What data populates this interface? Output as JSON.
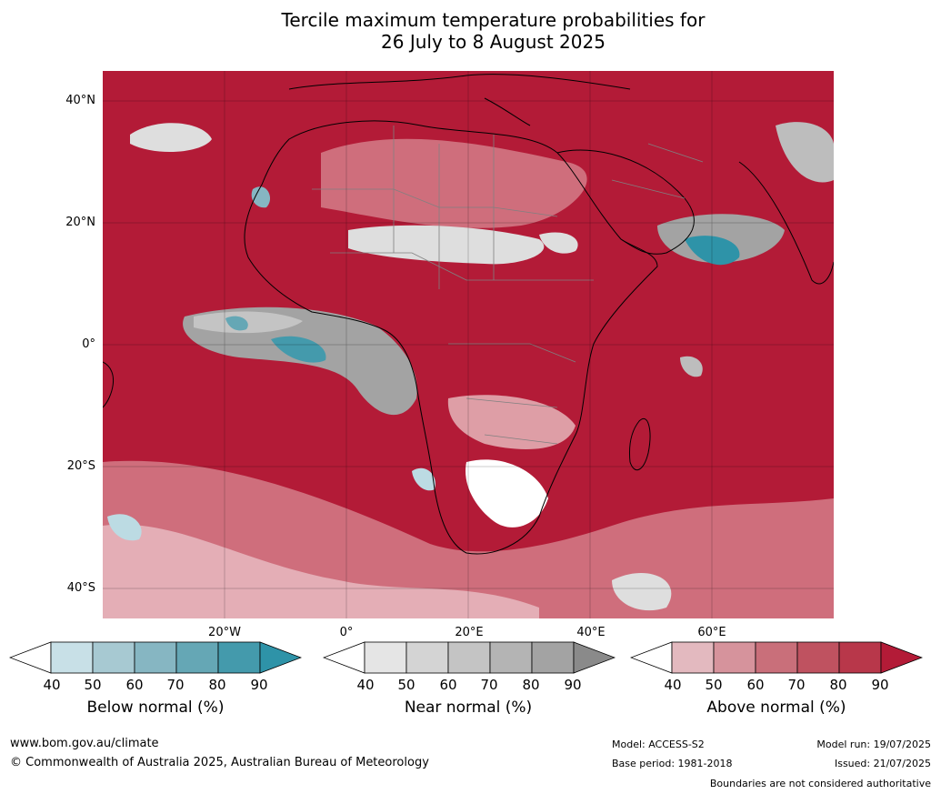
{
  "title": {
    "line1": "Tercile maximum temperature probabilities for",
    "line2": "26 July to 8 August 2025"
  },
  "map": {
    "lat_labels": [
      "40°N",
      "20°N",
      "0°",
      "20°S",
      "40°S"
    ],
    "lon_labels": [
      "20°W",
      "0°",
      "20°E",
      "40°E",
      "60°E"
    ],
    "colors": {
      "above_90": "#b31b37",
      "above_80": "#be3a4e",
      "above_70": "#c95b69",
      "above_60": "#d47d88",
      "above_50": "#de9ea6",
      "above_40": "#e9bec4",
      "near_90": "#8a8a8a",
      "near_60": "#bdbdbd",
      "near_40": "#dedede",
      "below_90": "#2e93a8",
      "below_50": "#bcdbe3",
      "land_border": "#808080",
      "coast": "#000000"
    }
  },
  "colorbars": [
    {
      "name": "Below normal (%)",
      "ticks": [
        "40",
        "50",
        "60",
        "70",
        "80",
        "90"
      ],
      "colors": [
        "#ffffff",
        "#c8e0e7",
        "#a7c9d2",
        "#86b6c2",
        "#65a7b5",
        "#449aac",
        "#2e93a8"
      ]
    },
    {
      "name": "Near normal (%)",
      "ticks": [
        "40",
        "50",
        "60",
        "70",
        "80",
        "90"
      ],
      "colors": [
        "#ffffff",
        "#e5e5e5",
        "#d4d4d4",
        "#c4c4c4",
        "#b4b4b4",
        "#a3a3a3",
        "#8a8a8a"
      ]
    },
    {
      "name": "Above normal (%)",
      "ticks": [
        "40",
        "50",
        "60",
        "70",
        "80",
        "90"
      ],
      "colors": [
        "#ffffff",
        "#e3b9bf",
        "#d6939c",
        "#c96f7a",
        "#bf5260",
        "#b8374a",
        "#b31b37"
      ]
    }
  ],
  "footer": {
    "website": "www.bom.gov.au/climate",
    "copyright": "© Commonwealth of Australia 2025, Australian Bureau of Meteorology",
    "model": "Model: ACCESS-S2",
    "base_period": "Base period: 1981-2018",
    "model_run": "Model run: 19/07/2025",
    "issued": "Issued: 21/07/2025",
    "disclaimer": "Boundaries are not considered authoritative"
  }
}
